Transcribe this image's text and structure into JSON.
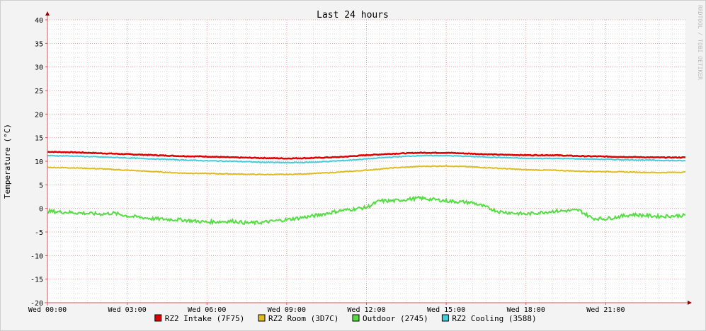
{
  "chart_data": {
    "type": "line",
    "title": "Last 24 hours",
    "ylabel": "Temperature (°C)",
    "xlabel": "",
    "watermark": "RRDTOOL / TOBI OETIKER",
    "ylim": [
      -20,
      40
    ],
    "xlim_hours": [
      0,
      24
    ],
    "y_ticks": [
      "40",
      "35",
      "30",
      "25",
      "20",
      "15",
      "10",
      "5",
      "0",
      "-5",
      "-10",
      "-15",
      "-20"
    ],
    "x_ticks": [
      {
        "hour": 0,
        "label": "Wed 00:00"
      },
      {
        "hour": 3,
        "label": "Wed 03:00"
      },
      {
        "hour": 6,
        "label": "Wed 06:00"
      },
      {
        "hour": 9,
        "label": "Wed 09:00"
      },
      {
        "hour": 12,
        "label": "Wed 12:00"
      },
      {
        "hour": 15,
        "label": "Wed 15:00"
      },
      {
        "hour": 18,
        "label": "Wed 18:00"
      },
      {
        "hour": 21,
        "label": "Wed 21:00"
      }
    ],
    "grid": true,
    "legend_position": "bottom",
    "series": [
      {
        "name": "RZ2 Intake (7F75)",
        "color": "#dd0000",
        "x": [
          0,
          1,
          2,
          3,
          4,
          5,
          6,
          7,
          8,
          9,
          10,
          11,
          12,
          13,
          14,
          15,
          16,
          17,
          18,
          19,
          20,
          21,
          22,
          23,
          24
        ],
        "y": [
          12.0,
          11.9,
          11.7,
          11.5,
          11.3,
          11.1,
          11.0,
          10.8,
          10.7,
          10.6,
          10.7,
          10.9,
          11.3,
          11.6,
          11.8,
          11.8,
          11.6,
          11.4,
          11.3,
          11.3,
          11.1,
          11.0,
          10.9,
          10.8,
          10.8
        ]
      },
      {
        "name": "RZ2 Room (3D7C)",
        "color": "#e0bb20",
        "x": [
          0,
          1,
          2,
          3,
          4,
          5,
          6,
          7,
          8,
          9,
          10,
          11,
          12,
          13,
          14,
          15,
          16,
          17,
          18,
          19,
          20,
          21,
          22,
          23,
          24
        ],
        "y": [
          8.7,
          8.6,
          8.4,
          8.1,
          7.8,
          7.5,
          7.4,
          7.3,
          7.2,
          7.2,
          7.4,
          7.7,
          8.1,
          8.6,
          8.9,
          9.0,
          8.8,
          8.5,
          8.2,
          8.1,
          7.9,
          7.8,
          7.7,
          7.6,
          7.7
        ]
      },
      {
        "name": "Outdoor (2745)",
        "color": "#55dd44",
        "x": [
          0,
          1,
          2,
          2.5,
          3,
          4,
          5,
          6,
          7,
          7.5,
          8,
          9,
          10,
          11,
          12,
          12.5,
          13,
          14,
          15,
          16,
          17,
          18,
          19,
          20,
          20.5,
          21,
          22,
          23,
          24
        ],
        "y": [
          -0.6,
          -0.9,
          -1.2,
          -1.0,
          -1.6,
          -2.2,
          -2.4,
          -2.9,
          -2.7,
          -3.1,
          -3.0,
          -2.4,
          -1.6,
          -0.5,
          0.2,
          1.6,
          1.6,
          2.2,
          1.6,
          1.2,
          -0.7,
          -1.2,
          -0.6,
          -0.4,
          -2.1,
          -2.2,
          -1.3,
          -1.7,
          -1.5
        ]
      },
      {
        "name": "RZ2 Cooling (3588)",
        "color": "#44ccdd",
        "x": [
          0,
          1,
          2,
          3,
          4,
          5,
          6,
          7,
          8,
          9,
          10,
          11,
          12,
          13,
          14,
          15,
          16,
          17,
          18,
          19,
          20,
          21,
          22,
          23,
          24
        ],
        "y": [
          11.2,
          11.1,
          10.9,
          10.7,
          10.5,
          10.3,
          10.1,
          10.0,
          9.8,
          9.7,
          9.8,
          10.1,
          10.5,
          10.9,
          11.2,
          11.2,
          11.0,
          10.8,
          10.6,
          10.6,
          10.5,
          10.4,
          10.3,
          10.2,
          10.1
        ]
      }
    ]
  }
}
